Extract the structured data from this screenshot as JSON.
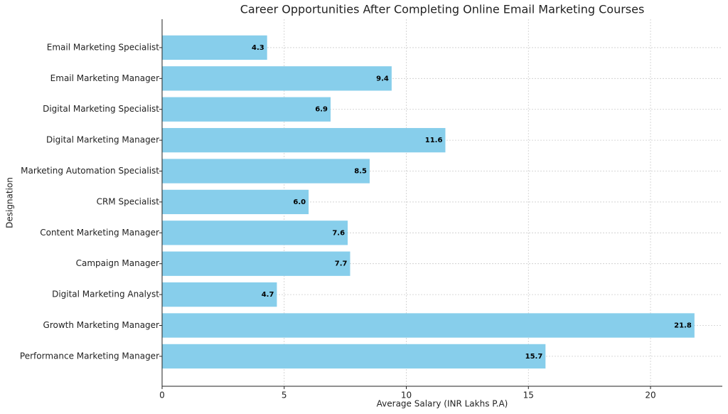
{
  "chart_data": {
    "type": "bar",
    "orientation": "horizontal",
    "title": "Career Opportunities After Completing Online Email Marketing Courses",
    "x_label": "Average Salary (INR Lakhs P.A)",
    "y_label": "Designation",
    "categories": [
      "Email Marketing Specialist",
      "Email Marketing Manager",
      "Digital Marketing Specialist",
      "Digital Marketing Manager",
      "Marketing Automation Specialist",
      "CRM Specialist",
      "Content Marketing Manager",
      "Campaign Manager",
      "Digital Marketing Analyst",
      "Growth Marketing Manager",
      "Performance Marketing Manager"
    ],
    "values": [
      4.3,
      9.4,
      6.9,
      11.6,
      8.5,
      6.0,
      7.6,
      7.7,
      4.7,
      21.8,
      15.7
    ],
    "value_labels": [
      "4.3",
      "9.4",
      "6.9",
      "11.6",
      "8.5",
      "6.0",
      "7.6",
      "7.7",
      "4.7",
      "21.8",
      "15.7"
    ],
    "color": "#87ceeb",
    "xlim": [
      0,
      22.94
    ],
    "xticks": [
      0,
      5,
      10,
      15,
      20
    ],
    "grid": true
  }
}
